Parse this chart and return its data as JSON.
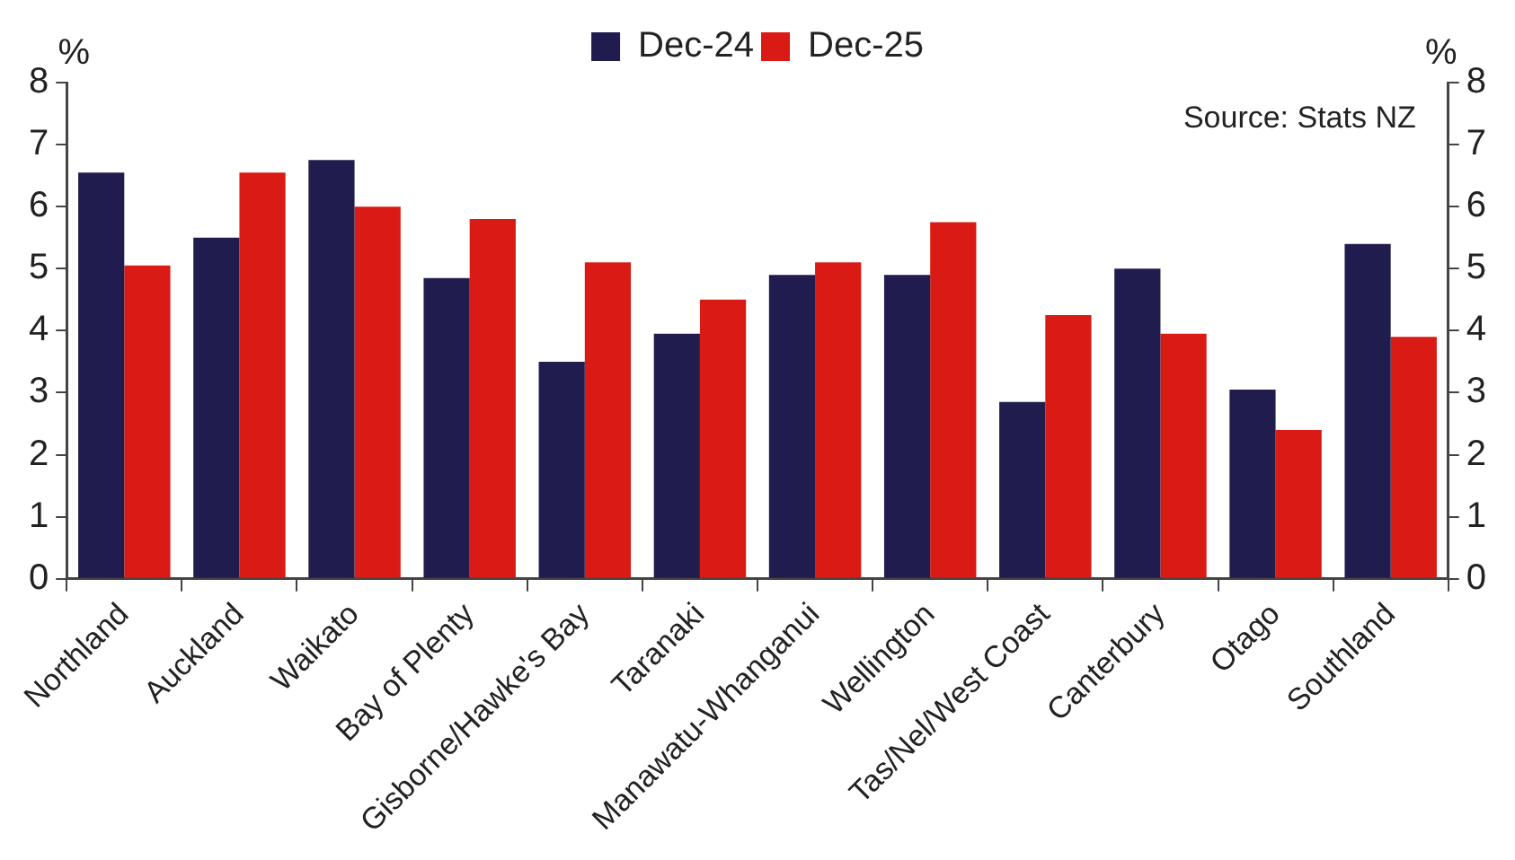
{
  "chart_data": {
    "type": "bar",
    "ylabel": "%",
    "y2label": "%",
    "categories": [
      "Northland",
      "Auckland",
      "Waikato",
      "Bay of Plenty",
      "Gisborne/Hawke's Bay",
      "Taranaki",
      "Manawatu-Whanganui",
      "Wellington",
      "Tas/Nel/West Coast",
      "Canterbury",
      "Otago",
      "Southland"
    ],
    "series": [
      {
        "name": "Dec-24",
        "color": "#201d4e",
        "values": [
          6.55,
          5.5,
          6.75,
          4.85,
          3.5,
          3.95,
          4.9,
          4.9,
          2.85,
          5.0,
          3.05,
          5.4
        ]
      },
      {
        "name": "Dec-25",
        "color": "#da1a14",
        "values": [
          5.05,
          6.55,
          6.0,
          5.8,
          5.1,
          4.5,
          5.1,
          5.75,
          4.25,
          3.95,
          2.4,
          3.9
        ]
      }
    ],
    "ylim": [
      0,
      8
    ],
    "yticks": [
      0,
      1,
      2,
      3,
      4,
      5,
      6,
      7,
      8
    ],
    "y2lim": [
      0,
      8
    ],
    "y2ticks": [
      0,
      1,
      2,
      3,
      4,
      5,
      6,
      7,
      8
    ],
    "annotations": [
      "Source: Stats NZ"
    ],
    "grid": false,
    "legend": "top"
  }
}
